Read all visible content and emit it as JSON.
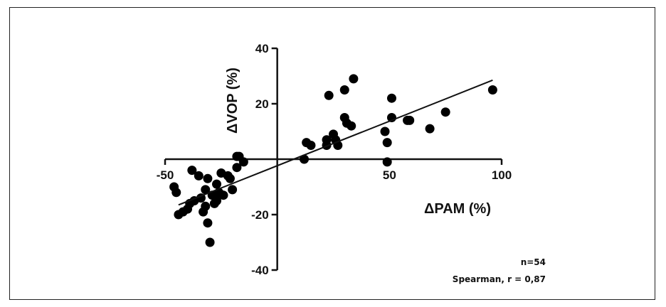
{
  "chart_data": {
    "type": "scatter",
    "xlabel": "ΔPAM (%)",
    "ylabel": "ΔVOP (%)",
    "xlim": [
      -50,
      100
    ],
    "ylim": [
      -40,
      40
    ],
    "x_ticks": [
      -50,
      50,
      100
    ],
    "y_ticks": [
      40,
      20,
      -20,
      -40
    ],
    "grid": false,
    "series": [
      {
        "points": [
          {
            "x": -46,
            "y": -10
          },
          {
            "x": -45,
            "y": -12
          },
          {
            "x": -44,
            "y": -20
          },
          {
            "x": -42,
            "y": -19
          },
          {
            "x": -40,
            "y": -18
          },
          {
            "x": -39,
            "y": -16
          },
          {
            "x": -37,
            "y": -15
          },
          {
            "x": -38,
            "y": -4
          },
          {
            "x": -35,
            "y": -6
          },
          {
            "x": -34,
            "y": -14
          },
          {
            "x": -33,
            "y": -19
          },
          {
            "x": -32,
            "y": -11
          },
          {
            "x": -31,
            "y": -7
          },
          {
            "x": -32,
            "y": -17
          },
          {
            "x": -31,
            "y": -23
          },
          {
            "x": -30,
            "y": -30
          },
          {
            "x": -29,
            "y": -13
          },
          {
            "x": -28,
            "y": -16
          },
          {
            "x": -27,
            "y": -15
          },
          {
            "x": -27,
            "y": -9
          },
          {
            "x": -26,
            "y": -12
          },
          {
            "x": -25,
            "y": -5
          },
          {
            "x": -24,
            "y": -13
          },
          {
            "x": -22,
            "y": -6
          },
          {
            "x": -21,
            "y": -7
          },
          {
            "x": -20,
            "y": -11
          },
          {
            "x": -18,
            "y": -3
          },
          {
            "x": -18,
            "y": 1
          },
          {
            "x": -17,
            "y": 1
          },
          {
            "x": -15,
            "y": -1
          },
          {
            "x": 12,
            "y": 0
          },
          {
            "x": 13,
            "y": 6
          },
          {
            "x": 15,
            "y": 5
          },
          {
            "x": 22,
            "y": 5
          },
          {
            "x": 22,
            "y": 7
          },
          {
            "x": 25,
            "y": 9
          },
          {
            "x": 26,
            "y": 7
          },
          {
            "x": 27,
            "y": 5
          },
          {
            "x": 23,
            "y": 23
          },
          {
            "x": 30,
            "y": 15
          },
          {
            "x": 31,
            "y": 13
          },
          {
            "x": 30,
            "y": 25
          },
          {
            "x": 33,
            "y": 12
          },
          {
            "x": 34,
            "y": 29
          },
          {
            "x": 48,
            "y": 10
          },
          {
            "x": 49,
            "y": 6
          },
          {
            "x": 49,
            "y": -1
          },
          {
            "x": 51,
            "y": 22
          },
          {
            "x": 51,
            "y": 15
          },
          {
            "x": 58,
            "y": 14
          },
          {
            "x": 59,
            "y": 14
          },
          {
            "x": 68,
            "y": 11
          },
          {
            "x": 75,
            "y": 17
          },
          {
            "x": 96,
            "y": 25
          }
        ]
      }
    ],
    "regression_line": {
      "x1": -44,
      "y1": -16.5,
      "x2": 96,
      "y2": 28.5
    },
    "annotations": [
      "n=54",
      "Spearman, r = 0,87"
    ]
  }
}
